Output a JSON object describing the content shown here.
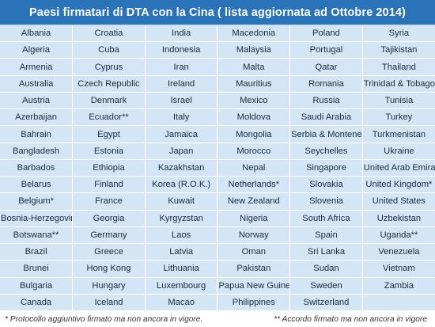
{
  "title": "Paesi firmatari di DTA con la Cina ( lista aggiornata ad Ottobre 2014)",
  "colors": {
    "header_bg": "#2a73b8",
    "cell_bg": "#d4e6f5",
    "grid_line": "#ffffff"
  },
  "rows": [
    [
      "Albania",
      "Croatia",
      "India",
      "Macedonia",
      "Poland",
      "Syria"
    ],
    [
      "Algeria",
      "Cuba",
      "Indonesia",
      "Malaysia",
      "Portugal",
      "Tajikistan"
    ],
    [
      "Armenia",
      "Cyprus",
      "Iran",
      "Malta",
      "Qatar",
      "Thailand"
    ],
    [
      "Australia",
      "Czech Republic",
      "Ireland",
      "Mauritius",
      "Romania",
      "Trinidad & Tobago"
    ],
    [
      "Austria",
      "Denmark",
      "Israel",
      "Mexico",
      "Russia",
      "Tunisia"
    ],
    [
      "Azerbaijan",
      "Ecuador**",
      "Italy",
      "Moldova",
      "Saudi Arabia",
      "Turkey"
    ],
    [
      "Bahrain",
      "Egypt",
      "Jamaica",
      "Mongolia",
      "Serbia & Montenegro",
      "Turkmenistan"
    ],
    [
      "Bangladesh",
      "Estonia",
      "Japan",
      "Morocco",
      "Seychelles",
      "Ukraine"
    ],
    [
      "Barbados",
      "Ethiopia",
      "Kazakhstan",
      "Nepal",
      "Singapore",
      "United Arab Emirates"
    ],
    [
      "Belarus",
      "Finland",
      "Korea (R.O.K.)",
      "Netherlands*",
      "Slovakia",
      "United Kingdom*"
    ],
    [
      "Belgium*",
      "France",
      "Kuwait",
      "New Zealand",
      "Slovenia",
      "United States"
    ],
    [
      "Bosnia-Herzegovina",
      "Georgia",
      "Kyrgyzstan",
      "Nigeria",
      "South Africa",
      "Uzbekistan"
    ],
    [
      "Botswana**",
      "Germany",
      "Laos",
      "Norway",
      "Spain",
      "Uganda**"
    ],
    [
      "Brazil",
      "Greece",
      "Latvia",
      "Oman",
      "Sri Lanka",
      "Venezuela"
    ],
    [
      "Brunei",
      "Hong Kong",
      "Lithuania",
      "Pakistan",
      "Sudan",
      "Vietnam"
    ],
    [
      "Bulgaria",
      "Hungary",
      "Luxembourg",
      "Papua New Guinea",
      "Sweden",
      "Zambia"
    ],
    [
      "Canada",
      "Iceland",
      "Macao",
      "Philippines",
      "Switzerland",
      ""
    ]
  ],
  "footnotes": {
    "single": "* Protocollo aggiuntivo firmato ma non ancora in vigore.",
    "double": "** Accordo firmato ma non ancora in vigore"
  }
}
